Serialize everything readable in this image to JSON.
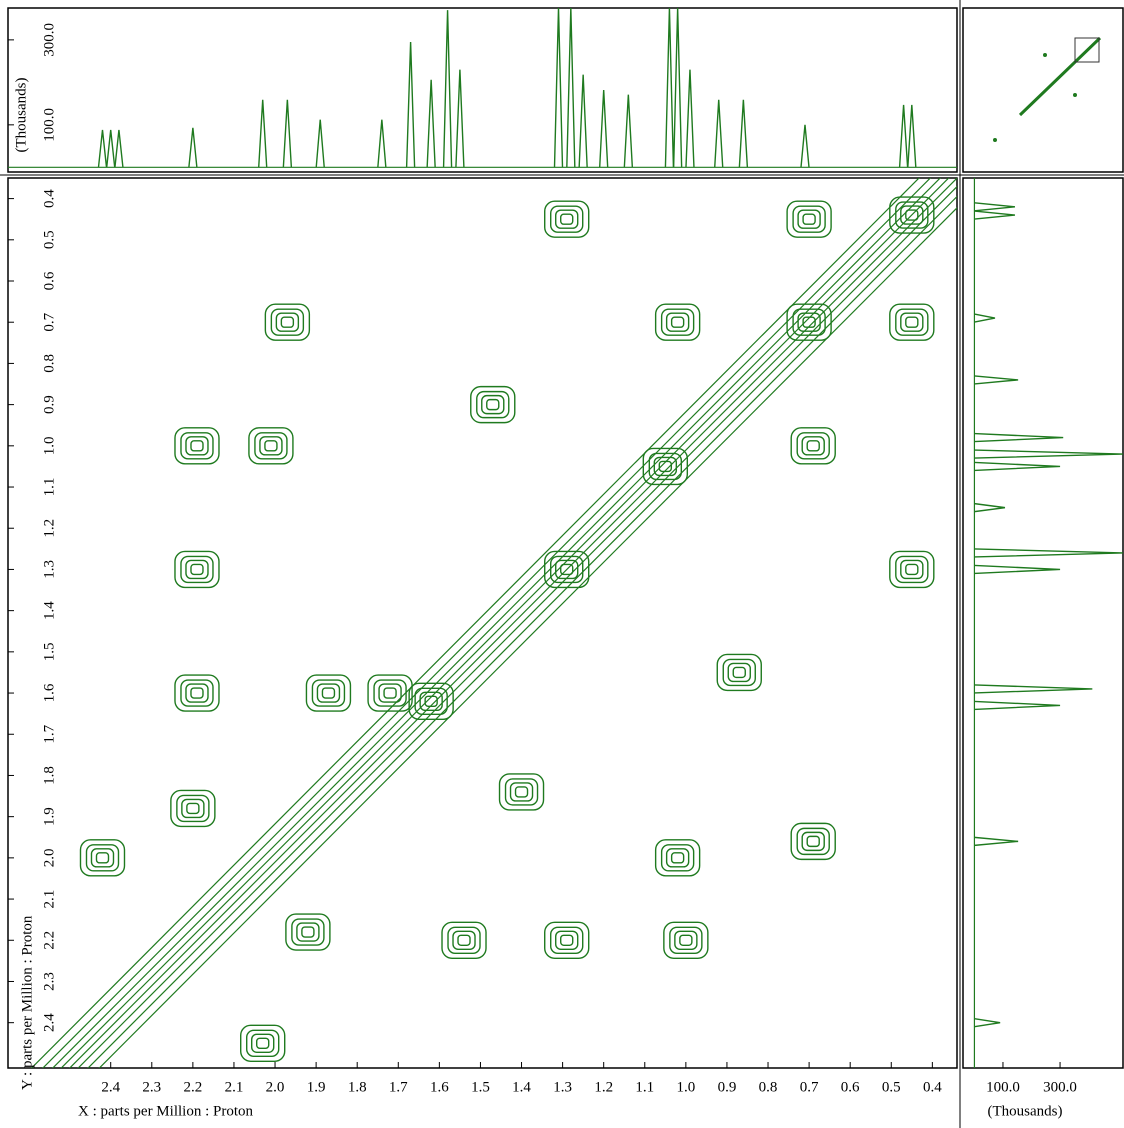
{
  "chart_data": [
    {
      "type": "contour",
      "xlabel": "X : parts per Million : Proton",
      "ylabel": "Y : parts per Million : Proton",
      "color": "#1f7a1f",
      "xlim": [
        2.65,
        0.34
      ],
      "ylim": [
        0.35,
        2.51
      ],
      "xticks": [
        2.4,
        2.3,
        2.2,
        2.1,
        {
          "value": 2,
          "label": "2.0"
        },
        1.9,
        1.8,
        1.7,
        1.6,
        1.5,
        1.4,
        1.3,
        1.2,
        1.1,
        {
          "value": 1,
          "label": "1.0"
        },
        0.9,
        0.8,
        0.7,
        0.6,
        0.5,
        0.4
      ],
      "yticks": [
        0.4,
        0.5,
        0.6,
        0.7,
        0.8,
        0.9,
        {
          "value": 1,
          "label": "1.0"
        },
        1.1,
        1.2,
        1.3,
        1.4,
        1.5,
        1.6,
        1.7,
        1.8,
        1.9,
        {
          "value": 2,
          "label": "2.0"
        },
        2.1,
        2.2,
        2.3,
        2.4
      ],
      "x": [
        1.29,
        0.7,
        0.45,
        1.97,
        1.02,
        0.45,
        2.19,
        2.01,
        0.69,
        2.19,
        0.45,
        1.29,
        2.19,
        1.87,
        1.72,
        2.2,
        2.42,
        1.02,
        0.69,
        1.54,
        1.29,
        1.0,
        2.03,
        1.92,
        1.47,
        0.87,
        1.62,
        1.4,
        1.05,
        0.7
      ],
      "y": [
        0.45,
        0.45,
        0.44,
        0.7,
        0.7,
        0.7,
        1.0,
        1.0,
        1.0,
        1.3,
        1.3,
        1.3,
        1.6,
        1.6,
        1.6,
        1.88,
        2.0,
        2.0,
        1.96,
        2.2,
        2.2,
        2.2,
        2.45,
        2.18,
        0.9,
        1.55,
        1.62,
        1.84,
        1.05,
        0.7
      ]
    },
    {
      "type": "line",
      "ylabel": "(Thousands)",
      "color": "#1f7a1f",
      "ylim": [
        -11,
        375
      ],
      "yticks": [
        {
          "value": 100,
          "label": "100.0"
        },
        {
          "value": 300,
          "label": "300.0"
        }
      ],
      "x": [
        2.42,
        2.4,
        2.38,
        2.2,
        2.03,
        1.97,
        1.89,
        1.74,
        1.67,
        1.62,
        1.58,
        1.55,
        1.31,
        1.28,
        1.25,
        1.2,
        1.14,
        1.04,
        1.02,
        0.99,
        0.92,
        0.86,
        0.71,
        0.47,
        0.45
      ],
      "values": [
        88,
        88,
        88,
        93,
        159,
        159,
        112,
        112,
        295,
        206,
        370,
        230,
        375,
        375,
        218,
        182,
        171,
        375,
        375,
        230,
        159,
        159,
        100,
        147,
        147
      ]
    },
    {
      "type": "line",
      "xlabel": "(Thousands)",
      "color": "#1f7a1f",
      "xlim": [
        -40,
        524
      ],
      "xticks": [
        {
          "value": 100,
          "label": "100.0"
        },
        {
          "value": 300,
          "label": "300.0"
        }
      ],
      "y": [
        0.42,
        0.44,
        0.69,
        0.84,
        0.98,
        1.02,
        1.05,
        1.15,
        1.26,
        1.3,
        1.59,
        1.63,
        1.96,
        2.4
      ],
      "values": [
        142,
        142,
        72,
        153,
        311,
        520,
        300,
        107,
        520,
        300,
        413,
        300,
        153,
        90
      ]
    }
  ]
}
